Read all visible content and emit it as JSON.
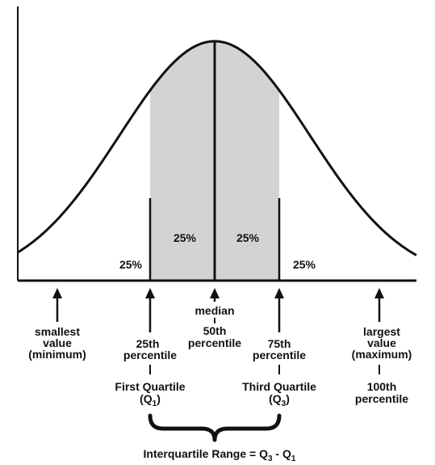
{
  "percent_labels": {
    "left_tail": "25%",
    "left_center": "25%",
    "right_center": "25%",
    "right_tail": "25%"
  },
  "markers": {
    "min": {
      "line1": "smallest",
      "line2": "value",
      "line3": "(minimum)"
    },
    "q1": {
      "line1": "25th",
      "line2": "percentile",
      "name": "First Quartile",
      "symbol": "Q",
      "symbol_sub": "1"
    },
    "median": {
      "line1": "median",
      "line2": "50th",
      "line3": "percentile"
    },
    "q3": {
      "line1": "75th",
      "line2": "percentile",
      "name": "Third Quartile",
      "symbol": "Q",
      "symbol_sub": "3"
    },
    "max": {
      "line1": "largest",
      "line2": "value",
      "line3": "(maximum)",
      "line4": "100th",
      "line5": "percentile"
    }
  },
  "iqr": {
    "label": "Interquartile Range = ",
    "q3": "Q",
    "q3_sub": "3",
    "minus": " - ",
    "q1": "Q",
    "q1_sub": "1"
  },
  "colors": {
    "line": "#111111",
    "shade": "#d3d3d3"
  }
}
